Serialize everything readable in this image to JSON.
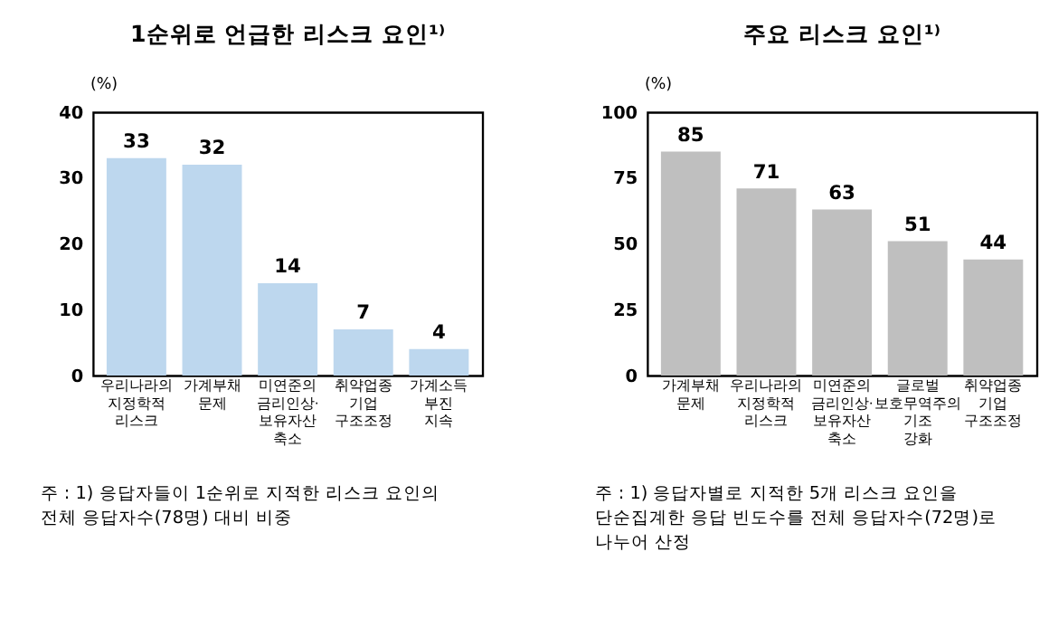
{
  "chart_data": [
    {
      "type": "bar",
      "title": "1순위로 언급한 리스크 요인¹⁾",
      "ylabel": "(%)",
      "categories": [
        "우리나라의 지정학적 리스크",
        "가계부채 문제",
        "미연준의 금리인상·보유자산 축소",
        "취약업종 기업 구조조정",
        "가계소득 부진 지속"
      ],
      "series": [
        {
          "color": "#bdd7ee",
          "values": [
            33,
            32,
            14,
            7,
            4
          ]
        }
      ],
      "ylim": [
        0,
        40
      ],
      "yticks": [
        0,
        10,
        20,
        30,
        40
      ],
      "grid": false,
      "data_labels": true,
      "annotations": [
        "주 : 1) 응답자들이 1순위로 지적한 리스크 요인의 전체 응답자수(78명) 대비 비중"
      ]
    },
    {
      "type": "bar",
      "title": "주요 리스크 요인¹⁾",
      "ylabel": "(%)",
      "categories": [
        "가계부채 문제",
        "우리나라의 지정학적 리스크",
        "미연준의 금리인상·보유자산 축소",
        "글로벌 보호무역주의 기조 강화",
        "취약업종 기업 구조조정"
      ],
      "series": [
        {
          "color": "#bfbfbf",
          "values": [
            85,
            71,
            63,
            51,
            44
          ]
        }
      ],
      "ylim": [
        0,
        100
      ],
      "yticks": [
        0,
        25,
        50,
        75,
        100
      ],
      "grid": false,
      "data_labels": true,
      "annotations": [
        "주 : 1) 응답자별로 지적한 5개 리스크 요인을 단순집계한 응답 빈도수를 전체 응답자수(72명)로 나누어 산정"
      ]
    }
  ]
}
